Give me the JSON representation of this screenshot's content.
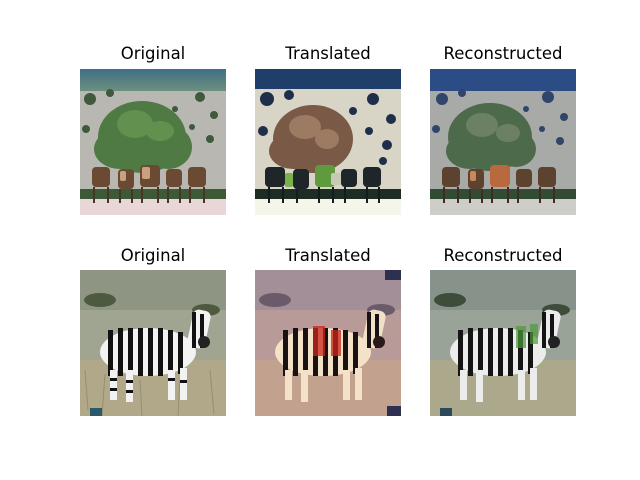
{
  "rows": [
    {
      "subject": "horses",
      "panels": [
        {
          "title": "Original"
        },
        {
          "title": "Translated"
        },
        {
          "title": "Reconstructed"
        }
      ]
    },
    {
      "subject": "zebra",
      "panels": [
        {
          "title": "Original"
        },
        {
          "title": "Translated"
        },
        {
          "title": "Reconstructed"
        }
      ]
    }
  ]
}
